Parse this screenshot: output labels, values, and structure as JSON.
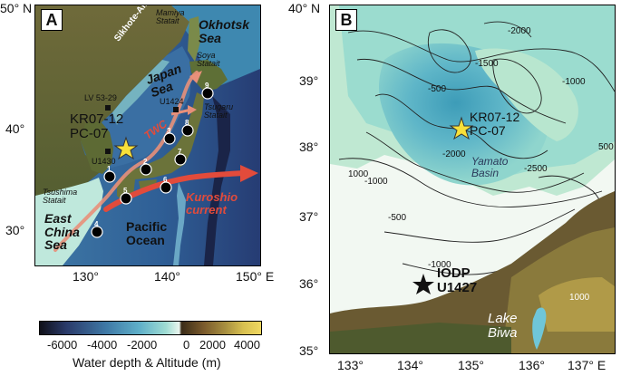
{
  "panelA": {
    "letter": "A",
    "lat_ticks": [
      "50° N",
      "40°",
      "30°"
    ],
    "lon_ticks": [
      "130°",
      "140°",
      "150° E"
    ],
    "labels": {
      "okhotsk": "Okhotsk\nSea",
      "mamiya": "Mamiya\nStatait",
      "sikhote": "Sikhote-Alin",
      "soya": "Soya\nStatait",
      "japan_sea": "Japan\nSea",
      "lv": "LV 53-29",
      "u1424": "U1424",
      "tsugaru": "Tsugaru\nStatait",
      "core": "KR07-12\nPC-07",
      "twc": "TWC",
      "u1430": "U1430",
      "tsushima": "Tsushima\nStatait",
      "kuroshio": "Kuroshio\ncurrent",
      "ecs": "East\nChina\nSea",
      "pacific": "Pacific\nOcean"
    },
    "sites": [
      "1",
      "2",
      "3",
      "4",
      "5",
      "6",
      "7",
      "8",
      "9"
    ]
  },
  "panelB": {
    "letter": "B",
    "lat_ticks": [
      "40° N",
      "39°",
      "38°",
      "37°",
      "36°",
      "35°"
    ],
    "lon_ticks": [
      "133°",
      "134°",
      "135°",
      "136°",
      "137° E"
    ],
    "labels": {
      "core": "KR07-12\nPC-07",
      "yamato": "Yamato\nBasin",
      "iodp": "IODP\nU1427",
      "biwa": "Lake\nBiwa",
      "c500a": "-500",
      "c1500": "-1500",
      "c2000a": "-2000",
      "c2000b": "-2000",
      "c2500": "-2500",
      "c1000a": "-1000",
      "c1000b": "-1000",
      "c500b": "-500",
      "c1000c": "1000",
      "c500c": "500",
      "c1000d": "-1000",
      "c1000e": "1000"
    }
  },
  "colorbar": {
    "ticks": [
      "-6000",
      "-4000",
      "-2000",
      "0",
      "2000",
      "4000"
    ],
    "label": "Water depth & Altitude (m)",
    "stops": [
      "#101018",
      "#2a3a6a",
      "#3f79a6",
      "#5fb0c9",
      "#9fdcd3",
      "#e9f5ee",
      "#f7f7f2",
      "#3a2c18",
      "#7a5a2c",
      "#a89040",
      "#d8c050",
      "#f0d860"
    ]
  },
  "colors": {
    "deep": "#2a3a6a",
    "shallow": "#dff3ee",
    "land_low": "#3c4a28",
    "land_high": "#a48a3c",
    "current": "#e24b3b",
    "star": "#f7e03a"
  }
}
